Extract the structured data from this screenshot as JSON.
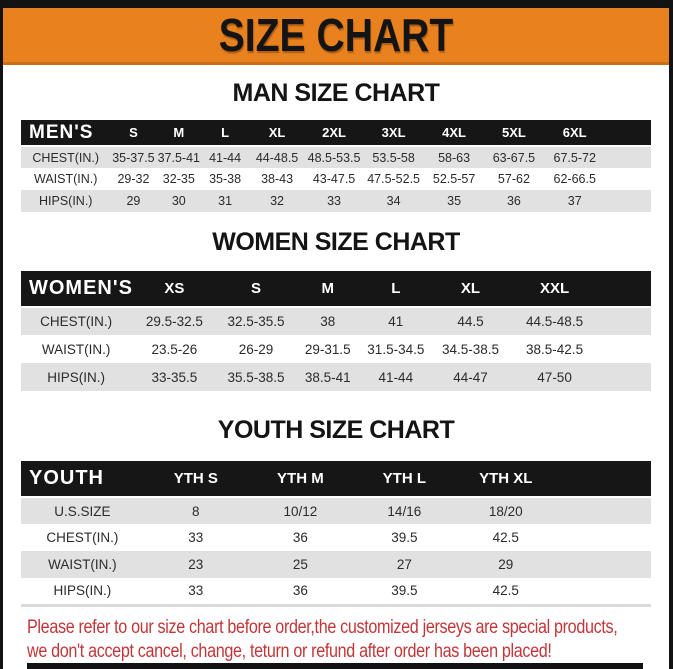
{
  "banner": {
    "title": "SIZE CHART"
  },
  "sections": [
    {
      "id": "man",
      "title": "MAN SIZE CHART",
      "table": {
        "corner_label": "MEN'S",
        "size_headers": [
          "S",
          "M",
          "L",
          "XL",
          "2XL",
          "3XL",
          "4XL",
          "5XL",
          "6XL"
        ],
        "rows": [
          {
            "label": "CHEST(IN.)",
            "values": [
              "35-37.5",
              "37.5-41",
              "41-44",
              "44-48.5",
              "48.5-53.5",
              "53.5-58",
              "58-63",
              "63-67.5",
              "67.5-72"
            ]
          },
          {
            "label": "WAIST(IN.)",
            "values": [
              "29-32",
              "32-35",
              "35-38",
              "38-43",
              "43-47.5",
              "47.5-52.5",
              "52.5-57",
              "57-62",
              "62-66.5"
            ]
          },
          {
            "label": "HIPS(IN.)",
            "values": [
              "29",
              "30",
              "31",
              "32",
              "33",
              "34",
              "35",
              "36",
              "37"
            ]
          }
        ]
      }
    },
    {
      "id": "women",
      "title": "WOMEN SIZE CHART",
      "table": {
        "corner_label": "WOMEN'S",
        "size_headers": [
          "XS",
          "S",
          "M",
          "L",
          "XL",
          "XXL"
        ],
        "rows": [
          {
            "label": "CHEST(IN.)",
            "values": [
              "29.5-32.5",
              "32.5-35.5",
              "38",
              "41",
              "44.5",
              "44.5-48.5"
            ]
          },
          {
            "label": "WAIST(IN.)",
            "values": [
              "23.5-26",
              "26-29",
              "29-31.5",
              "31.5-34.5",
              "34.5-38.5",
              "38.5-42.5"
            ]
          },
          {
            "label": "HIPS(IN.)",
            "values": [
              "33-35.5",
              "35.5-38.5",
              "38.5-41",
              "41-44",
              "44-47",
              "47-50"
            ]
          }
        ]
      }
    },
    {
      "id": "youth",
      "title": "YOUTH SIZE CHART",
      "table": {
        "corner_label": "YOUTH",
        "size_headers": [
          "YTH S",
          "YTH M",
          "YTH L",
          "YTH XL"
        ],
        "rows": [
          {
            "label": "U.S.SIZE",
            "values": [
              "8",
              "10/12",
              "14/16",
              "18/20"
            ]
          },
          {
            "label": "CHEST(IN.)",
            "values": [
              "33",
              "36",
              "39.5",
              "42.5"
            ]
          },
          {
            "label": "WAIST(IN.)",
            "values": [
              "23",
              "25",
              "27",
              "29"
            ]
          },
          {
            "label": "HIPS(IN.)",
            "values": [
              "33",
              "36",
              "39.5",
              "42.5"
            ]
          }
        ]
      }
    }
  ],
  "footer": {
    "line1": "Please refer to our size chart before order,the customized jerseys are special products,",
    "line2": "we don't accept cancel, change, teturn or refund after order has been placed!"
  },
  "colors": {
    "banner_orange": "#E8811E",
    "bar_black": "#121212",
    "table_header_black": "#161616",
    "row_stripe_gray": "#E1E1E1",
    "footer_red": "#C23639"
  }
}
